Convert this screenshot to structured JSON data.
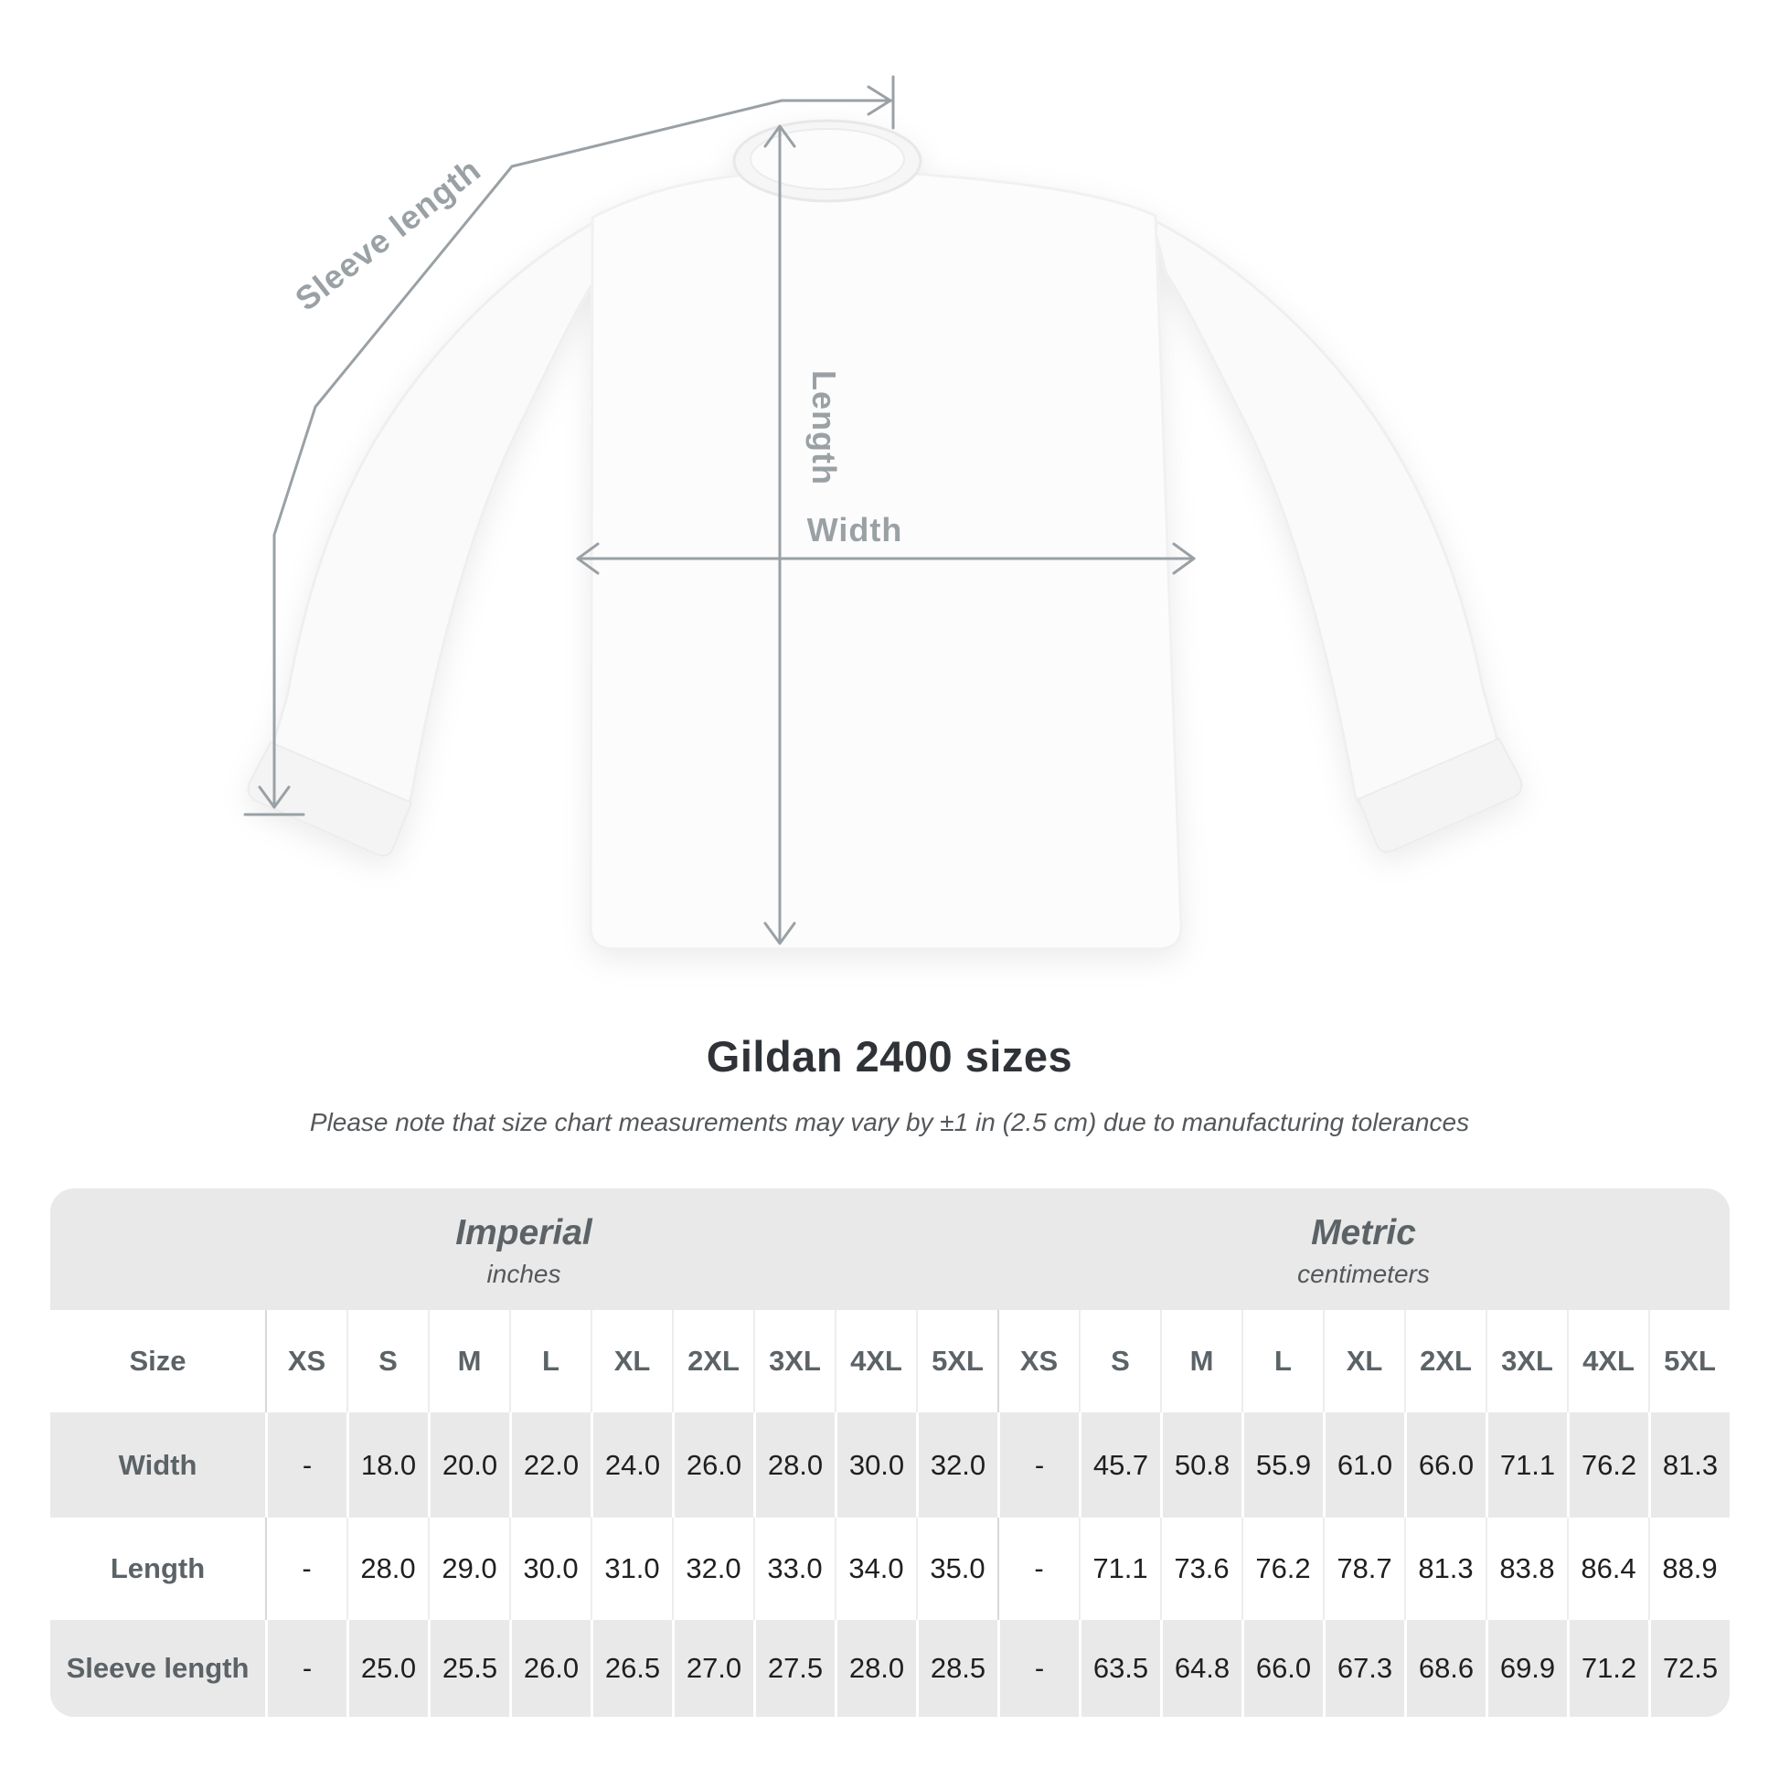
{
  "diagram": {
    "labels": {
      "sleeve_length": "Sleeve length",
      "length": "Length",
      "width": "Width"
    }
  },
  "title": "Gildan 2400 sizes",
  "subtitle": "Please note that size chart measurements may vary by ±1 in (2.5 cm) due to manufacturing tolerances",
  "table": {
    "size_label": "Size",
    "systems": [
      {
        "name": "Imperial",
        "unit": "inches"
      },
      {
        "name": "Metric",
        "unit": "centimeters"
      }
    ],
    "sizes": [
      "XS",
      "S",
      "M",
      "L",
      "XL",
      "2XL",
      "3XL",
      "4XL",
      "5XL"
    ],
    "rows": [
      {
        "label": "Width",
        "imperial": [
          "-",
          "18.0",
          "20.0",
          "22.0",
          "24.0",
          "26.0",
          "28.0",
          "30.0",
          "32.0"
        ],
        "metric": [
          "-",
          "45.7",
          "50.8",
          "55.9",
          "61.0",
          "66.0",
          "71.1",
          "76.2",
          "81.3"
        ]
      },
      {
        "label": "Length",
        "imperial": [
          "-",
          "28.0",
          "29.0",
          "30.0",
          "31.0",
          "32.0",
          "33.0",
          "34.0",
          "35.0"
        ],
        "metric": [
          "-",
          "71.1",
          "73.6",
          "76.2",
          "78.7",
          "81.3",
          "83.8",
          "86.4",
          "88.9"
        ]
      },
      {
        "label": "Sleeve length",
        "imperial": [
          "-",
          "25.0",
          "25.5",
          "26.0",
          "26.5",
          "27.0",
          "27.5",
          "28.0",
          "28.5"
        ],
        "metric": [
          "-",
          "63.5",
          "64.8",
          "66.0",
          "67.3",
          "68.6",
          "69.9",
          "71.2",
          "72.5"
        ]
      }
    ]
  },
  "colors": {
    "table_gray": "#e9e9e9",
    "measure_gray": "#9aa1a5",
    "header_text": "#5c6367",
    "value_text": "#1f1f1f",
    "title_text": "#2f3337"
  }
}
